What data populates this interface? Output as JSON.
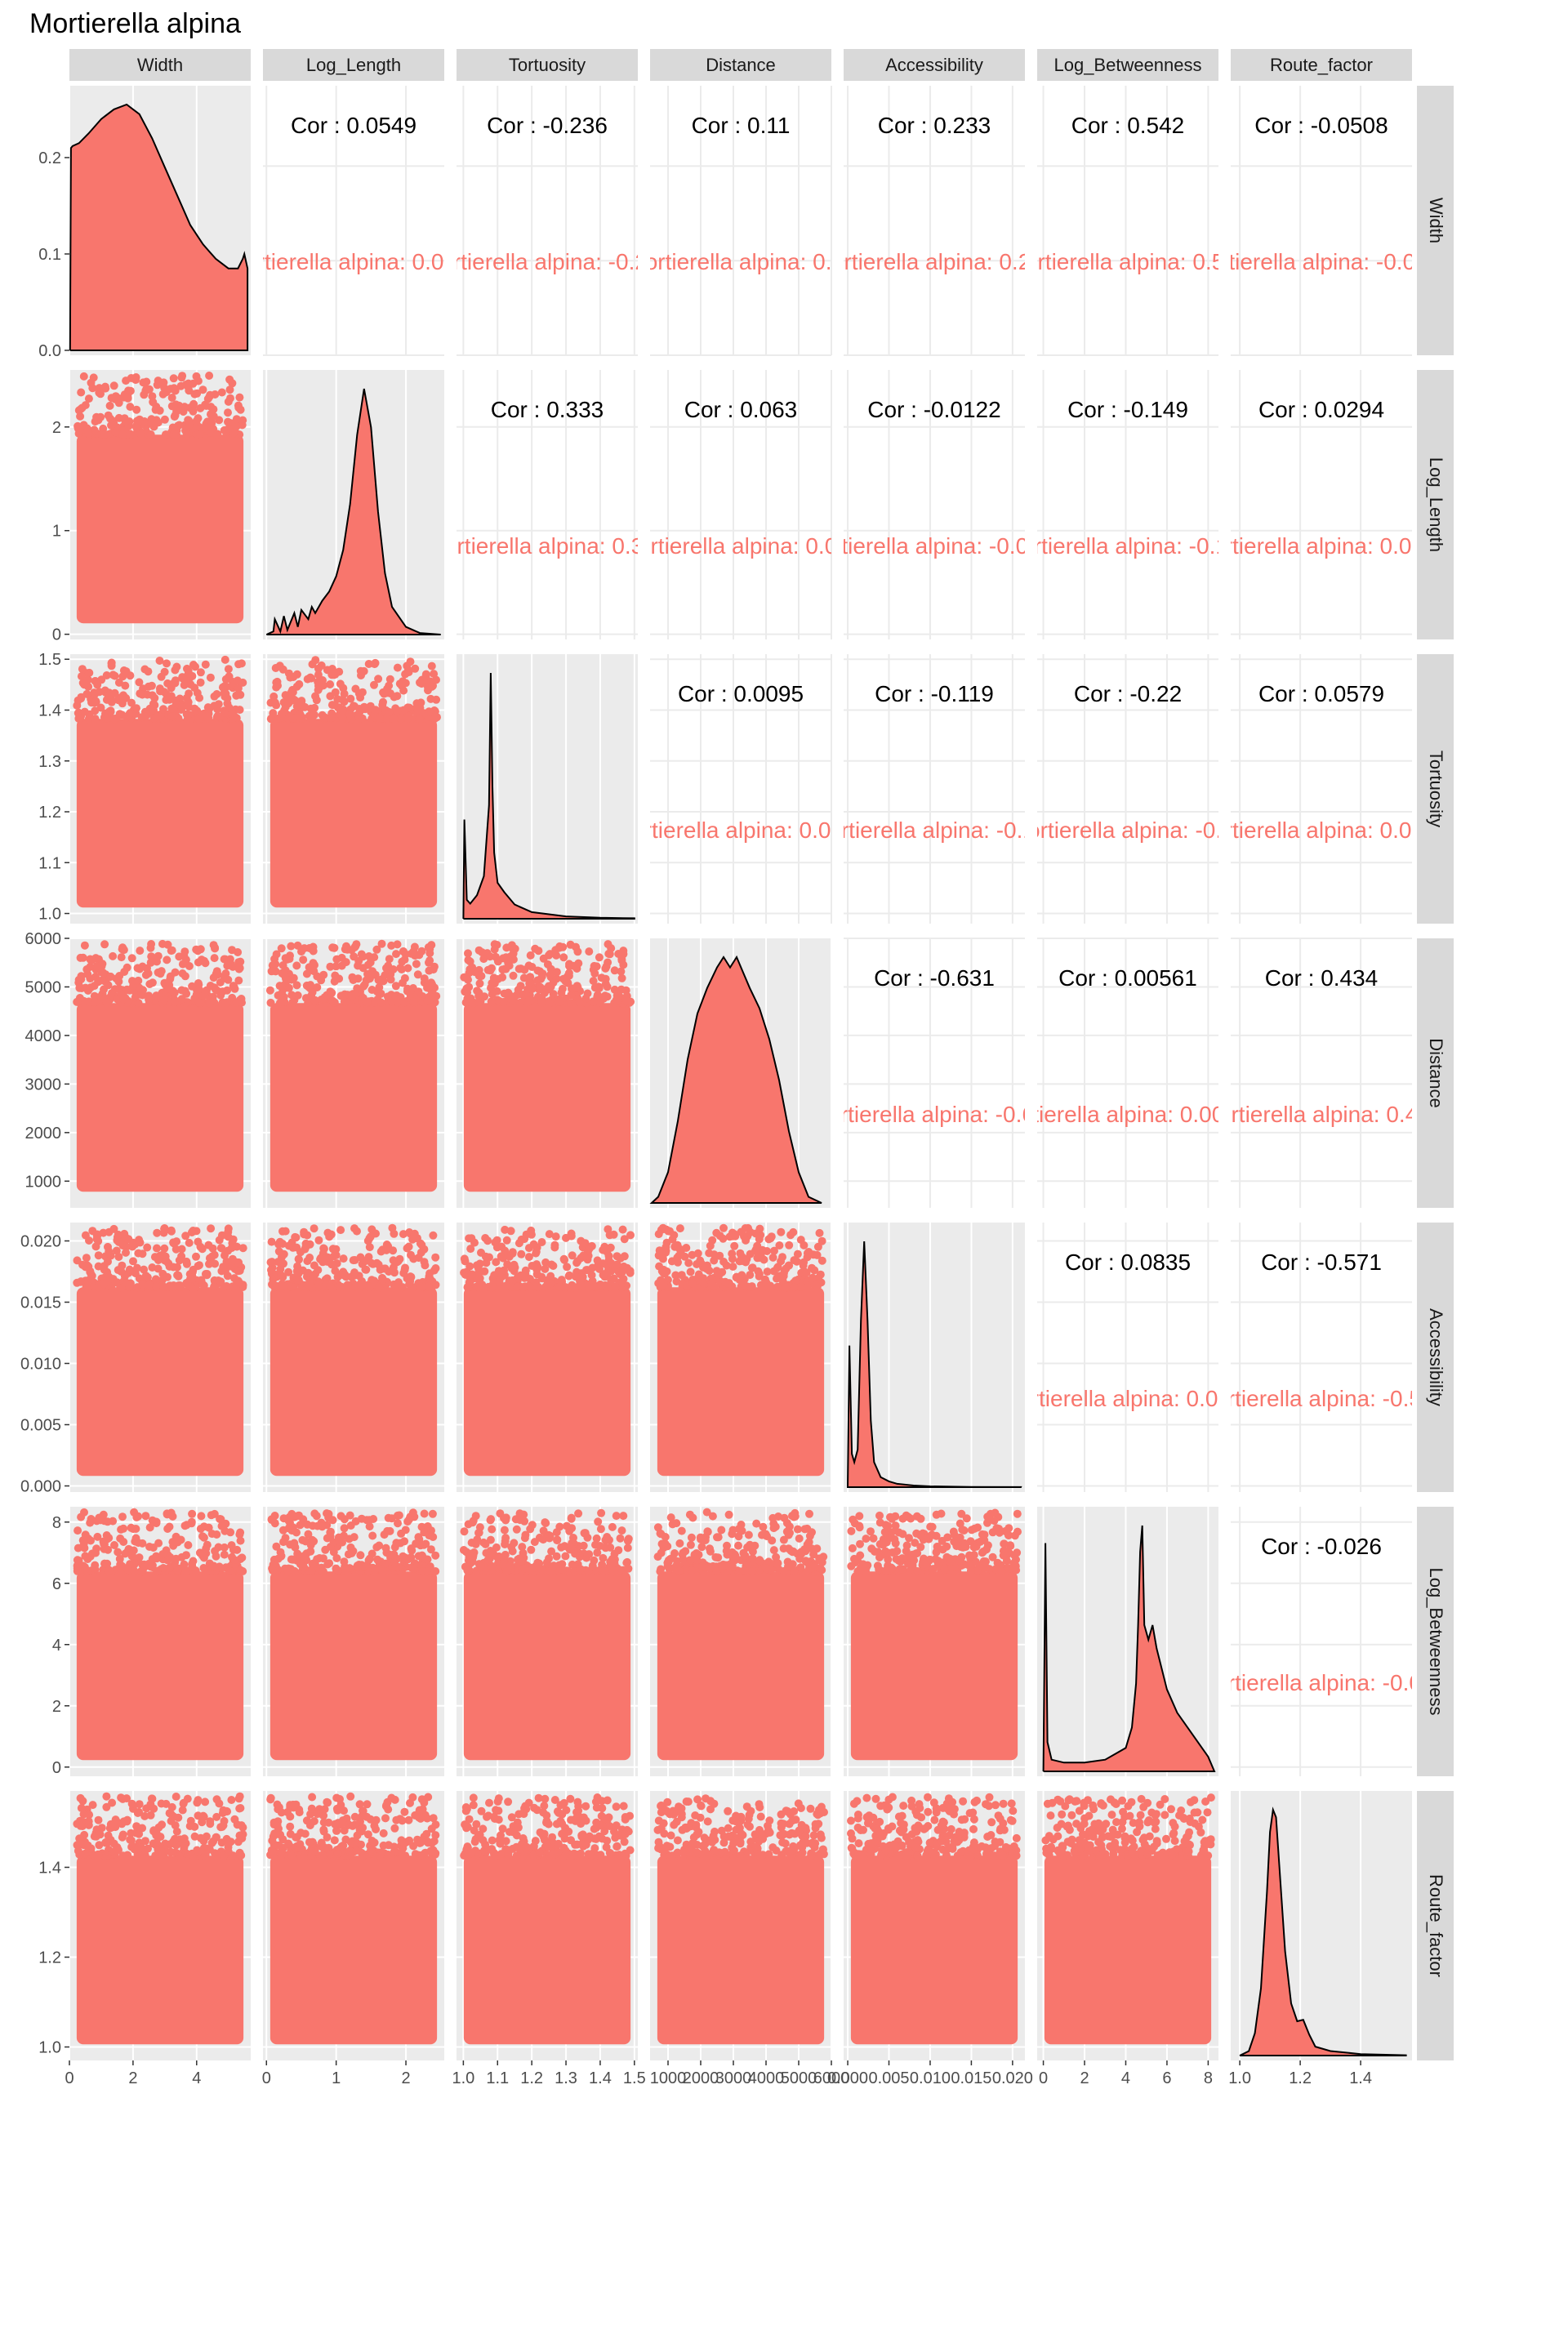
{
  "title": "Mortierella alpina",
  "colors": {
    "fill": "#F8766D",
    "panel_bg": "#EBEBEB",
    "grid_major": "#FFFFFF",
    "grid_minor": "#F5F5F5",
    "strip_bg": "#D9D9D9",
    "upper_grid": "#EBEBEB",
    "density_line": "#000000"
  },
  "chart_data": {
    "type": "scatter",
    "subtype": "pairs-matrix",
    "variables": [
      "Width",
      "Log_Length",
      "Tortuosity",
      "Distance",
      "Accessibility",
      "Log_Betweenness",
      "Route_factor"
    ],
    "group": "Mortierella alpina",
    "axes": {
      "Width": {
        "range": [
          0,
          5.7
        ],
        "ticks": [
          0,
          2,
          4
        ],
        "tick_labels": [
          "0",
          "2",
          "4"
        ]
      },
      "Log_Length": {
        "range": [
          -0.05,
          2.55
        ],
        "ticks": [
          0,
          1,
          2
        ],
        "tick_labels": [
          "0",
          "1",
          "2"
        ]
      },
      "Tortuosity": {
        "range": [
          0.98,
          1.51
        ],
        "ticks": [
          1.0,
          1.1,
          1.2,
          1.3,
          1.4,
          1.5
        ],
        "tick_labels": [
          "1.0",
          "1.1",
          "1.2",
          "1.3",
          "1.4",
          "1.5"
        ]
      },
      "Distance": {
        "range": [
          450,
          6000
        ],
        "ticks": [
          1000,
          2000,
          3000,
          4000,
          5000,
          6000
        ],
        "tick_labels": [
          "1000",
          "2000",
          "3000",
          "4000",
          "5000",
          "6000"
        ]
      },
      "Accessibility": {
        "range": [
          -0.0005,
          0.0215
        ],
        "ticks": [
          0,
          0.005,
          0.01,
          0.015,
          0.02
        ],
        "tick_labels": [
          "0.000",
          "0.005",
          "0.010",
          "0.015",
          "0.020"
        ]
      },
      "Log_Betweenness": {
        "range": [
          -0.3,
          8.5
        ],
        "ticks": [
          0,
          2,
          4,
          6,
          8
        ],
        "tick_labels": [
          "0",
          "2",
          "4",
          "6",
          "8"
        ]
      },
      "Route_factor": {
        "range": [
          0.97,
          1.57
        ],
        "ticks": [
          1.0,
          1.2,
          1.4
        ],
        "tick_labels": [
          "1.0",
          "1.2",
          "1.4"
        ]
      }
    },
    "diagonal": {
      "type": "density",
      "curves": {
        "Width": {
          "x": [
            0.02,
            0.05,
            0.1,
            0.3,
            0.6,
            1.0,
            1.4,
            1.8,
            2.2,
            2.6,
            3.0,
            3.4,
            3.8,
            4.2,
            4.6,
            5.0,
            5.3,
            5.45,
            5.5,
            5.6
          ],
          "y": [
            0,
            0.21,
            0.212,
            0.215,
            0.225,
            0.24,
            0.25,
            0.255,
            0.245,
            0.22,
            0.19,
            0.16,
            0.13,
            0.11,
            0.095,
            0.085,
            0.085,
            0.095,
            0.1,
            0.085
          ]
        },
        "Log_Length": {
          "x": [
            0.0,
            0.1,
            0.12,
            0.2,
            0.25,
            0.3,
            0.4,
            0.45,
            0.5,
            0.6,
            0.65,
            0.7,
            0.8,
            0.9,
            1.0,
            1.1,
            1.2,
            1.3,
            1.4,
            1.5,
            1.6,
            1.7,
            1.8,
            2.0,
            2.2,
            2.5
          ],
          "y": [
            0,
            0.02,
            0.1,
            0.02,
            0.12,
            0.03,
            0.14,
            0.05,
            0.16,
            0.1,
            0.18,
            0.14,
            0.22,
            0.28,
            0.38,
            0.55,
            0.85,
            1.3,
            1.6,
            1.35,
            0.8,
            0.4,
            0.18,
            0.05,
            0.01,
            0
          ]
        },
        "Tortuosity": {
          "x": [
            1.0,
            1.003,
            1.01,
            1.02,
            1.04,
            1.06,
            1.075,
            1.08,
            1.085,
            1.09,
            1.1,
            1.12,
            1.15,
            1.2,
            1.3,
            1.4,
            1.5
          ],
          "y": [
            0,
            10.5,
            2.0,
            1.6,
            2.5,
            4.5,
            12.0,
            26.0,
            14.0,
            7.0,
            3.8,
            2.8,
            1.5,
            0.7,
            0.25,
            0.1,
            0.05
          ]
        },
        "Distance": {
          "x": [
            500,
            700,
            1000,
            1300,
            1600,
            1900,
            2200,
            2500,
            2700,
            2900,
            3100,
            3300,
            3500,
            3800,
            4100,
            4400,
            4700,
            5000,
            5300,
            5700
          ],
          "y": [
            0.0,
            6e-06,
            3e-05,
            8e-05,
            0.00014,
            0.000185,
            0.00021,
            0.00023,
            0.00024,
            0.00023,
            0.00024,
            0.000225,
            0.00021,
            0.00019,
            0.00016,
            0.00012,
            7e-05,
            3e-05,
            6e-06,
            0.0
          ]
        },
        "Accessibility": {
          "x": [
            0.0,
            0.0002,
            0.0005,
            0.0008,
            0.0012,
            0.0016,
            0.002,
            0.0024,
            0.0028,
            0.0032,
            0.004,
            0.005,
            0.006,
            0.008,
            0.01,
            0.015,
            0.021
          ],
          "y": [
            0,
            170,
            40,
            30,
            45,
            200,
            295,
            200,
            80,
            30,
            12,
            7,
            4,
            2,
            1,
            0.3,
            0.1
          ]
        },
        "Log_Betweenness": {
          "x": [
            0.0,
            0.1,
            0.2,
            0.4,
            1.0,
            2.0,
            3.0,
            3.5,
            4.0,
            4.3,
            4.5,
            4.6,
            4.7,
            4.8,
            4.9,
            5.1,
            5.3,
            5.5,
            6.0,
            6.5,
            7.0,
            7.5,
            8.0,
            8.3
          ],
          "y": [
            0,
            0.78,
            0.1,
            0.04,
            0.03,
            0.03,
            0.04,
            0.06,
            0.08,
            0.15,
            0.3,
            0.5,
            0.75,
            0.84,
            0.5,
            0.45,
            0.5,
            0.42,
            0.28,
            0.2,
            0.15,
            0.1,
            0.05,
            0.0
          ]
        },
        "Route_factor": {
          "x": [
            1.0,
            1.03,
            1.05,
            1.07,
            1.09,
            1.1,
            1.11,
            1.12,
            1.13,
            1.15,
            1.17,
            1.19,
            1.21,
            1.23,
            1.25,
            1.3,
            1.4,
            1.55
          ],
          "y": [
            0,
            0.3,
            1.5,
            4.5,
            11.0,
            15.0,
            16.5,
            16.0,
            13.0,
            7.0,
            3.5,
            2.3,
            2.4,
            1.4,
            0.6,
            0.3,
            0.1,
            0.02
          ]
        }
      }
    },
    "upper": {
      "type": "correlation",
      "label_prefix": "Cor : ",
      "group_label_suffix": "Mortierella alpina: ",
      "values": {
        "Width|Log_Length": "0.0549",
        "Width|Tortuosity": "-0.236",
        "Width|Distance": "0.11",
        "Width|Accessibility": "0.233",
        "Width|Log_Betweenness": "0.542",
        "Width|Route_factor": "-0.0508",
        "Log_Length|Tortuosity": "0.333",
        "Log_Length|Distance": "0.063",
        "Log_Length|Accessibility": "-0.0122",
        "Log_Length|Log_Betweenness": "-0.149",
        "Log_Length|Route_factor": "0.0294",
        "Tortuosity|Distance": "0.0095",
        "Tortuosity|Accessibility": "-0.119",
        "Tortuosity|Log_Betweenness": "-0.22",
        "Tortuosity|Route_factor": "0.0579",
        "Distance|Accessibility": "-0.631",
        "Distance|Log_Betweenness": "0.00561",
        "Distance|Route_factor": "0.434",
        "Accessibility|Log_Betweenness": "0.0835",
        "Accessibility|Route_factor": "-0.571",
        "Log_Betweenness|Route_factor": "-0.026"
      }
    },
    "lower": {
      "type": "scatter",
      "description_points": "dense point clouds"
    }
  }
}
